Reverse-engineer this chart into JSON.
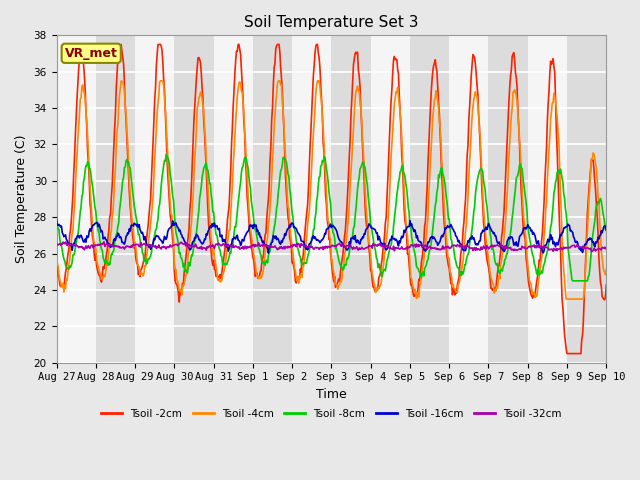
{
  "title": "Soil Temperature Set 3",
  "xlabel": "Time",
  "ylabel": "Soil Temperature (C)",
  "ylim": [
    20,
    38
  ],
  "yticks": [
    20,
    22,
    24,
    26,
    28,
    30,
    32,
    34,
    36,
    38
  ],
  "fig_bg": "#e8e8e8",
  "plot_bg": "#e8e8e8",
  "band_light": "#f5f5f5",
  "band_dark": "#dcdcdc",
  "annotation_text": "VR_met",
  "annotation_color": "#8b0000",
  "annotation_bg": "#ffff88",
  "annotation_edge": "#888800",
  "grid_color": "#ffffff",
  "series": {
    "Tsoil -2cm": {
      "color": "#ff2000",
      "lw": 1.2
    },
    "Tsoil -4cm": {
      "color": "#ff8800",
      "lw": 1.2
    },
    "Tsoil -8cm": {
      "color": "#00cc00",
      "lw": 1.2
    },
    "Tsoil -16cm": {
      "color": "#0000cc",
      "lw": 1.2
    },
    "Tsoil -32cm": {
      "color": "#aa00aa",
      "lw": 1.2
    }
  },
  "x_tick_labels": [
    "Aug 27",
    "Aug 28",
    "Aug 29",
    "Aug 30",
    "Aug 31",
    "Sep 1",
    "Sep 2",
    "Sep 3",
    "Sep 4",
    "Sep 5",
    "Sep 6",
    "Sep 7",
    "Sep 8",
    "Sep 9",
    "Sep 10"
  ],
  "x_tick_positions": [
    0,
    1,
    2,
    3,
    4,
    5,
    6,
    7,
    8,
    9,
    10,
    11,
    12,
    13,
    14
  ]
}
